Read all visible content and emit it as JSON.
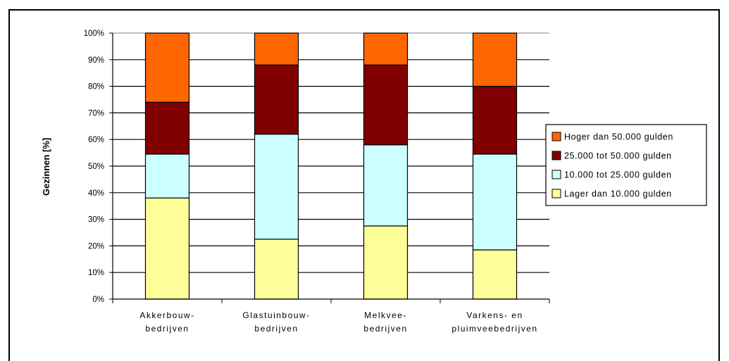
{
  "chart_data": {
    "type": "bar",
    "stacked": true,
    "title": "",
    "xlabel": "",
    "ylabel": "Gezinnen [%]",
    "ylim": [
      0,
      100
    ],
    "yticks": [
      "0%",
      "10%",
      "20%",
      "30%",
      "40%",
      "50%",
      "60%",
      "70%",
      "80%",
      "90%",
      "100%"
    ],
    "grid": true,
    "legend_position": "right",
    "categories": [
      [
        "Akkerbouw-",
        "bedrijven"
      ],
      [
        "Glastuinbouw-",
        "bedrijven"
      ],
      [
        "Melkvee-",
        "bedrijven"
      ],
      [
        "Varkens- en",
        "pluimveebedrijven"
      ]
    ],
    "series": [
      {
        "name": "Lager dan 10.000 gulden",
        "color": "#ffff99",
        "values": [
          38,
          22.5,
          27.5,
          18.5
        ]
      },
      {
        "name": "10.000 tot 25.000 gulden",
        "color": "#ccffff",
        "values": [
          16.5,
          39.5,
          30.5,
          36
        ]
      },
      {
        "name": "25.000 tot 50.000 gulden",
        "color": "#800000",
        "values": [
          19.5,
          26,
          30,
          25.5
        ]
      },
      {
        "name": "Hoger dan 50.000 gulden",
        "color": "#ff6600",
        "values": [
          26,
          12,
          12,
          20
        ]
      }
    ]
  }
}
